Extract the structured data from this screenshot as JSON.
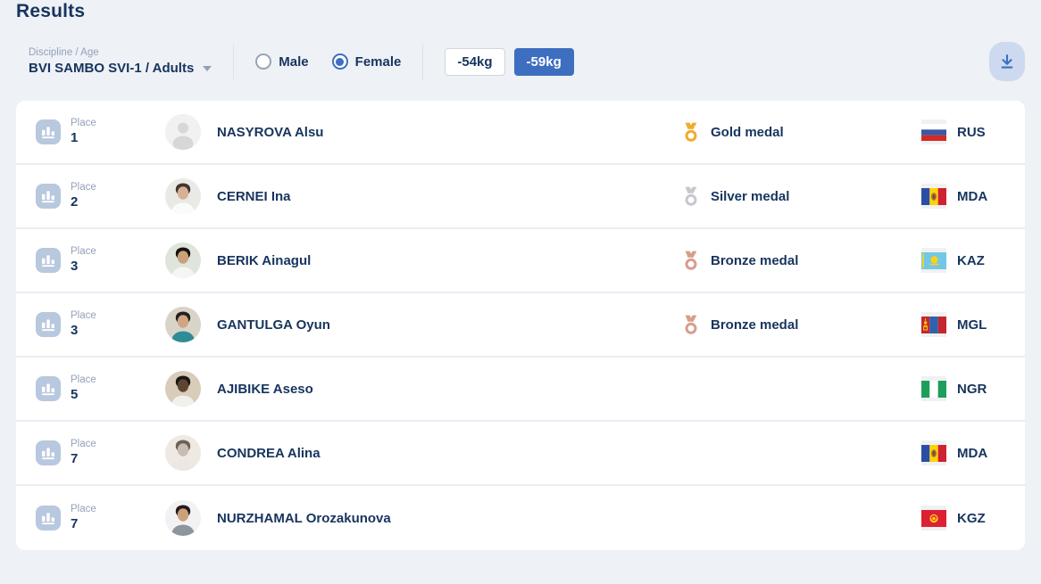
{
  "page": {
    "title": "Results"
  },
  "colors": {
    "accent_blue": "#3d6ebf",
    "page_background": "#eef1f6",
    "text_primary": "#17345e",
    "text_muted": "#93a2b8",
    "gold": "#f0ab2d",
    "silver": "#c5c8cd",
    "bronze": "#d79e8c",
    "download_pill": "#cdd9ee",
    "place_icon_bg": "#b8c8de"
  },
  "filters": {
    "discipline": {
      "label": "Discipline / Age",
      "value": "BVI SAMBO SVI-1 / Adults",
      "caret_icon": "chevron-down-icon"
    },
    "gender": {
      "options": [
        {
          "label": "Male",
          "selected": false
        },
        {
          "label": "Female",
          "selected": true
        }
      ]
    },
    "weights": [
      {
        "label": "-54kg",
        "selected": false
      },
      {
        "label": "-59kg",
        "selected": true
      }
    ],
    "download_icon": "download-icon"
  },
  "table": {
    "place_label": "Place",
    "rows": [
      {
        "place": "1",
        "name": "NASYROVA Alsu",
        "medal": "Gold medal",
        "medal_type": "gold",
        "country": "RUS",
        "flag": "rus",
        "avatar": {
          "type": "placeholder",
          "bg": "#f1f1f1",
          "person": "#d7d7d7"
        }
      },
      {
        "place": "2",
        "name": "CERNEI Ina",
        "medal": "Silver medal",
        "medal_type": "silver",
        "country": "MDA",
        "flag": "mda",
        "avatar": {
          "type": "photo",
          "bg": "#e9e9e6",
          "hair": "#41372f",
          "skin": "#d8b096",
          "shirt": "#fbfbfa"
        }
      },
      {
        "place": "3",
        "name": "BERIK Ainagul",
        "medal": "Bronze medal",
        "medal_type": "bronze",
        "country": "KAZ",
        "flag": "kaz",
        "avatar": {
          "type": "photo",
          "bg": "#dfe5dc",
          "hair": "#17120f",
          "skin": "#caa17a",
          "shirt": "#f4f6f4"
        }
      },
      {
        "place": "3",
        "name": "GANTULGA Oyun",
        "medal": "Bronze medal",
        "medal_type": "bronze",
        "country": "MGL",
        "flag": "mgl",
        "avatar": {
          "type": "photo",
          "bg": "#d8d4c8",
          "hair": "#242021",
          "skin": "#cfa582",
          "shirt": "#2f8b96"
        }
      },
      {
        "place": "5",
        "name": "AJIBIKE Aseso",
        "medal": "",
        "medal_type": "none",
        "country": "NGR",
        "flag": "ngr",
        "avatar": {
          "type": "photo",
          "bg": "#d9ccb9",
          "hair": "#1c1613",
          "skin": "#5f4433",
          "shirt": "#f2f0ec"
        }
      },
      {
        "place": "7",
        "name": "CONDREA Alina",
        "medal": "",
        "medal_type": "none",
        "country": "MDA",
        "flag": "mda",
        "avatar": {
          "type": "photo",
          "bg": "#efe9e3",
          "hair": "#6b6158",
          "skin": "#c9bcb0",
          "shirt": "#ebe7e2"
        }
      },
      {
        "place": "7",
        "name": "NURZHAMAL Orozakunova",
        "medal": "",
        "medal_type": "none",
        "country": "KGZ",
        "flag": "kgz",
        "avatar": {
          "type": "photo",
          "bg": "#f2f1f4",
          "hair": "#221c1a",
          "skin": "#cda07c",
          "shirt": "#8e959e"
        }
      }
    ]
  }
}
